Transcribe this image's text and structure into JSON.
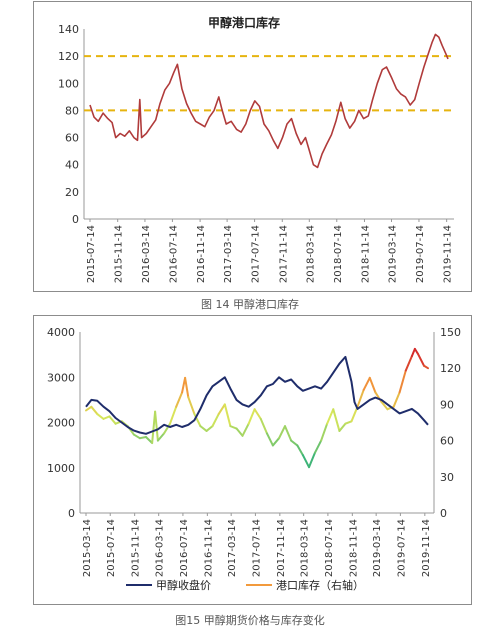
{
  "captions": {
    "fig14": "图 14 甲醇港口库存",
    "fig15": "图15 甲醇期货价格与库存变化"
  },
  "colors": {
    "inventory_line": "#b03b3b",
    "reference_line": "#e6b40f",
    "price_line": "#1f2d6b",
    "inventory_gradient": [
      "#2fb07a",
      "#d8e65a",
      "#f29a3c",
      "#d42a2a"
    ]
  },
  "chart_data": [
    {
      "type": "line",
      "title": "甲醇港口库存",
      "xlabel": "",
      "ylabel": "",
      "ylim": [
        0,
        140
      ],
      "y_ticks": [
        "0",
        "20",
        "40",
        "60",
        "80",
        "100",
        "120",
        "140"
      ],
      "x_tick_labels": [
        "2015-07-14",
        "2015-11-14",
        "2016-03-14",
        "2016-07-14",
        "2016-11-14",
        "2017-03-14",
        "2017-07-14",
        "2017-11-14",
        "2018-03-14",
        "2018-07-14",
        "2018-11-14",
        "2019-03-14",
        "2019-07-14",
        "2019-11-14"
      ],
      "x_range": [
        "2015-07-14",
        "2019-11-20"
      ],
      "grid": false,
      "reference_lines": [
        120,
        80
      ],
      "series": [
        {
          "values": [
            [
              "2015-07-14",
              84
            ],
            [
              "2015-08-01",
              75
            ],
            [
              "2015-08-20",
              72
            ],
            [
              "2015-09-10",
              78
            ],
            [
              "2015-10-01",
              74
            ],
            [
              "2015-10-20",
              71
            ],
            [
              "2015-11-05",
              60
            ],
            [
              "2015-11-25",
              63
            ],
            [
              "2015-12-15",
              61
            ],
            [
              "2016-01-05",
              65
            ],
            [
              "2016-01-25",
              60
            ],
            [
              "2016-02-10",
              58
            ],
            [
              "2016-02-20",
              88
            ],
            [
              "2016-02-28",
              60
            ],
            [
              "2016-03-20",
              63
            ],
            [
              "2016-04-10",
              68
            ],
            [
              "2016-05-01",
              73
            ],
            [
              "2016-05-20",
              85
            ],
            [
              "2016-06-10",
              95
            ],
            [
              "2016-07-01",
              100
            ],
            [
              "2016-07-20",
              108
            ],
            [
              "2016-08-05",
              114
            ],
            [
              "2016-08-25",
              96
            ],
            [
              "2016-09-15",
              85
            ],
            [
              "2016-10-05",
              78
            ],
            [
              "2016-10-25",
              72
            ],
            [
              "2016-11-15",
              70
            ],
            [
              "2016-12-05",
              68
            ],
            [
              "2016-12-25",
              75
            ],
            [
              "2017-01-15",
              80
            ],
            [
              "2017-02-05",
              90
            ],
            [
              "2017-02-20",
              80
            ],
            [
              "2017-03-10",
              70
            ],
            [
              "2017-04-01",
              72
            ],
            [
              "2017-04-25",
              66
            ],
            [
              "2017-05-15",
              64
            ],
            [
              "2017-06-05",
              70
            ],
            [
              "2017-06-25",
              80
            ],
            [
              "2017-07-15",
              87
            ],
            [
              "2017-08-05",
              83
            ],
            [
              "2017-08-25",
              70
            ],
            [
              "2017-09-15",
              65
            ],
            [
              "2017-10-05",
              58
            ],
            [
              "2017-10-25",
              52
            ],
            [
              "2017-11-15",
              60
            ],
            [
              "2017-12-05",
              70
            ],
            [
              "2017-12-25",
              74
            ],
            [
              "2018-01-15",
              63
            ],
            [
              "2018-02-05",
              55
            ],
            [
              "2018-02-25",
              60
            ],
            [
              "2018-03-15",
              50
            ],
            [
              "2018-04-01",
              40
            ],
            [
              "2018-04-20",
              38
            ],
            [
              "2018-05-10",
              48
            ],
            [
              "2018-05-30",
              55
            ],
            [
              "2018-06-20",
              62
            ],
            [
              "2018-07-10",
              72
            ],
            [
              "2018-08-01",
              86
            ],
            [
              "2018-08-20",
              74
            ],
            [
              "2018-09-10",
              67
            ],
            [
              "2018-10-01",
              72
            ],
            [
              "2018-10-20",
              80
            ],
            [
              "2018-11-10",
              74
            ],
            [
              "2018-12-01",
              76
            ],
            [
              "2018-12-20",
              88
            ],
            [
              "2019-01-10",
              100
            ],
            [
              "2019-02-01",
              110
            ],
            [
              "2019-02-20",
              112
            ],
            [
              "2019-03-15",
              104
            ],
            [
              "2019-04-05",
              96
            ],
            [
              "2019-04-25",
              92
            ],
            [
              "2019-05-15",
              90
            ],
            [
              "2019-06-05",
              84
            ],
            [
              "2019-06-25",
              88
            ],
            [
              "2019-07-15",
              100
            ],
            [
              "2019-08-05",
              112
            ],
            [
              "2019-08-25",
              122
            ],
            [
              "2019-09-10",
              130
            ],
            [
              "2019-09-25",
              136
            ],
            [
              "2019-10-10",
              134
            ],
            [
              "2019-10-25",
              128
            ],
            [
              "2019-11-10",
              122
            ],
            [
              "2019-11-20",
              118
            ]
          ]
        }
      ]
    },
    {
      "type": "line",
      "title": "",
      "xlabel": "",
      "ylabel": "",
      "ylim": [
        0,
        4000
      ],
      "y2lim": [
        0,
        150
      ],
      "y_ticks": [
        "0",
        "1000",
        "2000",
        "3000",
        "4000"
      ],
      "y2_ticks": [
        "0",
        "30",
        "60",
        "90",
        "120",
        "150"
      ],
      "x_tick_labels": [
        "2015-03-14",
        "2015-07-14",
        "2015-11-14",
        "2016-03-14",
        "2016-07-14",
        "2016-11-14",
        "2017-03-14",
        "2017-07-14",
        "2017-11-14",
        "2018-03-14",
        "2018-07-14",
        "2018-11-14",
        "2019-03-14",
        "2019-07-14",
        "2019-11-14"
      ],
      "x_range": [
        "2015-03-14",
        "2019-11-30"
      ],
      "grid": false,
      "legend": "bottom",
      "series": [
        {
          "name": "甲醇收盘价",
          "axis": "left",
          "values": [
            [
              "2015-03-14",
              2350
            ],
            [
              "2015-04-10",
              2500
            ],
            [
              "2015-05-10",
              2480
            ],
            [
              "2015-06-10",
              2350
            ],
            [
              "2015-07-10",
              2250
            ],
            [
              "2015-08-10",
              2100
            ],
            [
              "2015-09-10",
              2000
            ],
            [
              "2015-10-10",
              1900
            ],
            [
              "2015-11-10",
              1820
            ],
            [
              "2015-12-10",
              1780
            ],
            [
              "2016-01-10",
              1750
            ],
            [
              "2016-02-10",
              1800
            ],
            [
              "2016-03-10",
              1850
            ],
            [
              "2016-04-10",
              1950
            ],
            [
              "2016-05-10",
              1900
            ],
            [
              "2016-06-10",
              1950
            ],
            [
              "2016-07-10",
              1900
            ],
            [
              "2016-08-10",
              1950
            ],
            [
              "2016-09-10",
              2050
            ],
            [
              "2016-10-10",
              2300
            ],
            [
              "2016-11-10",
              2600
            ],
            [
              "2016-12-10",
              2800
            ],
            [
              "2017-01-10",
              2900
            ],
            [
              "2017-02-10",
              3000
            ],
            [
              "2017-03-10",
              2750
            ],
            [
              "2017-04-10",
              2500
            ],
            [
              "2017-05-10",
              2400
            ],
            [
              "2017-06-10",
              2350
            ],
            [
              "2017-07-10",
              2450
            ],
            [
              "2017-08-10",
              2600
            ],
            [
              "2017-09-10",
              2800
            ],
            [
              "2017-10-10",
              2850
            ],
            [
              "2017-11-10",
              3000
            ],
            [
              "2017-12-10",
              2900
            ],
            [
              "2018-01-10",
              2950
            ],
            [
              "2018-02-10",
              2800
            ],
            [
              "2018-03-10",
              2700
            ],
            [
              "2018-04-10",
              2750
            ],
            [
              "2018-05-10",
              2800
            ],
            [
              "2018-06-10",
              2750
            ],
            [
              "2018-07-10",
              2900
            ],
            [
              "2018-08-10",
              3100
            ],
            [
              "2018-09-10",
              3300
            ],
            [
              "2018-10-10",
              3450
            ],
            [
              "2018-11-10",
              2900
            ],
            [
              "2018-11-25",
              2450
            ],
            [
              "2018-12-10",
              2300
            ],
            [
              "2019-01-10",
              2400
            ],
            [
              "2019-02-10",
              2500
            ],
            [
              "2019-03-10",
              2550
            ],
            [
              "2019-04-10",
              2500
            ],
            [
              "2019-05-10",
              2400
            ],
            [
              "2019-06-10",
              2300
            ],
            [
              "2019-07-10",
              2200
            ],
            [
              "2019-08-10",
              2250
            ],
            [
              "2019-09-10",
              2300
            ],
            [
              "2019-10-10",
              2200
            ],
            [
              "2019-11-10",
              2050
            ],
            [
              "2019-11-30",
              1950
            ]
          ]
        },
        {
          "name": "港口库存（右轴）",
          "axis": "right",
          "values": [
            [
              "2015-03-14",
              85
            ],
            [
              "2015-04-10",
              88
            ],
            [
              "2015-05-10",
              82
            ],
            [
              "2015-06-10",
              78
            ],
            [
              "2015-07-10",
              80
            ],
            [
              "2015-08-10",
              74
            ],
            [
              "2015-09-10",
              76
            ],
            [
              "2015-10-10",
              72
            ],
            [
              "2015-11-10",
              65
            ],
            [
              "2015-12-10",
              62
            ],
            [
              "2016-01-10",
              63
            ],
            [
              "2016-02-10",
              58
            ],
            [
              "2016-02-25",
              84
            ],
            [
              "2016-03-10",
              60
            ],
            [
              "2016-04-10",
              66
            ],
            [
              "2016-05-10",
              74
            ],
            [
              "2016-06-10",
              88
            ],
            [
              "2016-07-10",
              100
            ],
            [
              "2016-07-25",
              112
            ],
            [
              "2016-08-10",
              96
            ],
            [
              "2016-09-10",
              82
            ],
            [
              "2016-10-10",
              72
            ],
            [
              "2016-11-10",
              68
            ],
            [
              "2016-12-10",
              72
            ],
            [
              "2017-01-10",
              82
            ],
            [
              "2017-02-10",
              90
            ],
            [
              "2017-03-10",
              72
            ],
            [
              "2017-04-10",
              70
            ],
            [
              "2017-05-10",
              64
            ],
            [
              "2017-06-10",
              74
            ],
            [
              "2017-07-10",
              86
            ],
            [
              "2017-08-10",
              78
            ],
            [
              "2017-09-10",
              66
            ],
            [
              "2017-10-10",
              56
            ],
            [
              "2017-11-10",
              62
            ],
            [
              "2017-12-10",
              72
            ],
            [
              "2018-01-10",
              60
            ],
            [
              "2018-02-10",
              56
            ],
            [
              "2018-03-10",
              48
            ],
            [
              "2018-04-10",
              38
            ],
            [
              "2018-05-10",
              50
            ],
            [
              "2018-06-10",
              60
            ],
            [
              "2018-07-10",
              74
            ],
            [
              "2018-08-10",
              86
            ],
            [
              "2018-09-10",
              68
            ],
            [
              "2018-10-10",
              74
            ],
            [
              "2018-11-10",
              76
            ],
            [
              "2018-12-10",
              88
            ],
            [
              "2019-01-10",
              102
            ],
            [
              "2019-02-10",
              112
            ],
            [
              "2019-03-10",
              100
            ],
            [
              "2019-04-10",
              92
            ],
            [
              "2019-05-10",
              86
            ],
            [
              "2019-06-10",
              88
            ],
            [
              "2019-07-10",
              100
            ],
            [
              "2019-08-10",
              118
            ],
            [
              "2019-09-10",
              130
            ],
            [
              "2019-09-25",
              136
            ],
            [
              "2019-10-10",
              132
            ],
            [
              "2019-11-10",
              122
            ],
            [
              "2019-11-30",
              120
            ]
          ]
        }
      ]
    }
  ]
}
